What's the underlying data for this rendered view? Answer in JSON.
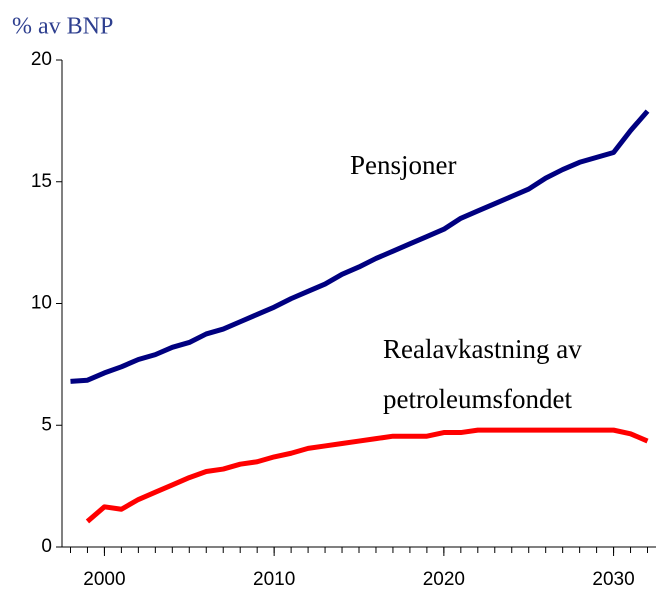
{
  "chart_data": {
    "type": "line",
    "title": "% av BNP",
    "x": [
      1998,
      1999,
      2000,
      2001,
      2002,
      2003,
      2004,
      2005,
      2006,
      2007,
      2008,
      2009,
      2010,
      2011,
      2012,
      2013,
      2014,
      2015,
      2016,
      2017,
      2018,
      2019,
      2020,
      2021,
      2022,
      2023,
      2024,
      2025,
      2026,
      2027,
      2028,
      2029,
      2030,
      2031,
      2032
    ],
    "series": [
      {
        "name": "Pensjoner",
        "color": "#000080",
        "values": [
          6.8,
          6.85,
          7.15,
          7.4,
          7.7,
          7.9,
          8.2,
          8.4,
          8.75,
          8.95,
          9.25,
          9.55,
          9.85,
          10.2,
          10.5,
          10.8,
          11.2,
          11.5,
          11.85,
          12.15,
          12.45,
          12.75,
          13.05,
          13.5,
          13.8,
          14.1,
          14.4,
          14.7,
          15.15,
          15.5,
          15.8,
          16.0,
          16.2,
          17.1,
          17.9
        ]
      },
      {
        "name": "Realavkastning av petroleumsfondet",
        "color": "#ff0000",
        "values": [
          null,
          1.05,
          1.65,
          1.55,
          1.95,
          2.25,
          2.55,
          2.85,
          3.1,
          3.2,
          3.4,
          3.5,
          3.7,
          3.85,
          4.05,
          4.15,
          4.25,
          4.35,
          4.45,
          4.55,
          4.55,
          4.55,
          4.7,
          4.7,
          4.8,
          4.8,
          4.8,
          4.8,
          4.8,
          4.8,
          4.8,
          4.8,
          4.8,
          4.65,
          4.35
        ]
      }
    ],
    "annotations": [
      "Pensjoner",
      "Realavkastning av",
      "petroleumsfondet"
    ],
    "xlim": [
      1997.5,
      2032.5
    ],
    "xticks": [
      2000,
      2010,
      2020,
      2030
    ],
    "ylim": [
      0,
      20
    ],
    "yticks": [
      0,
      5,
      10,
      15,
      20
    ]
  }
}
